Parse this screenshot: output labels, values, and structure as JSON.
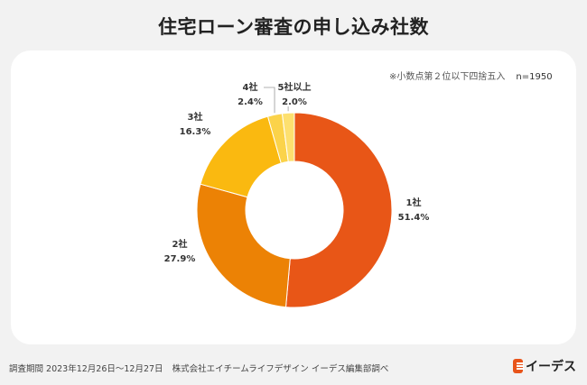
{
  "title": "住宅ローン審査の申し込み社数",
  "note": "※小数点第２位以下四捨五入",
  "sample_size": "n=1950",
  "footer": {
    "period": "調査期間 2023年12月26日〜12月27日",
    "company": "株式会社エイチームライフデザイン イーデス編集部調べ"
  },
  "brand": {
    "name": "イーデス",
    "icon": "edeth-logo-icon"
  },
  "chart_data": {
    "type": "pie",
    "title": "住宅ローン審査の申し込み社数",
    "donut": true,
    "categories": [
      "1社",
      "2社",
      "3社",
      "4社",
      "5社以上"
    ],
    "values": [
      51.4,
      27.9,
      16.3,
      2.4,
      2.0
    ],
    "value_labels": [
      "51.4%",
      "27.9%",
      "16.3%",
      "2.4%",
      "2.0%"
    ],
    "colors": [
      "#e85617",
      "#ec8205",
      "#fab910",
      "#fbd34a",
      "#fde06f"
    ],
    "start": "top",
    "direction": "clockwise"
  }
}
